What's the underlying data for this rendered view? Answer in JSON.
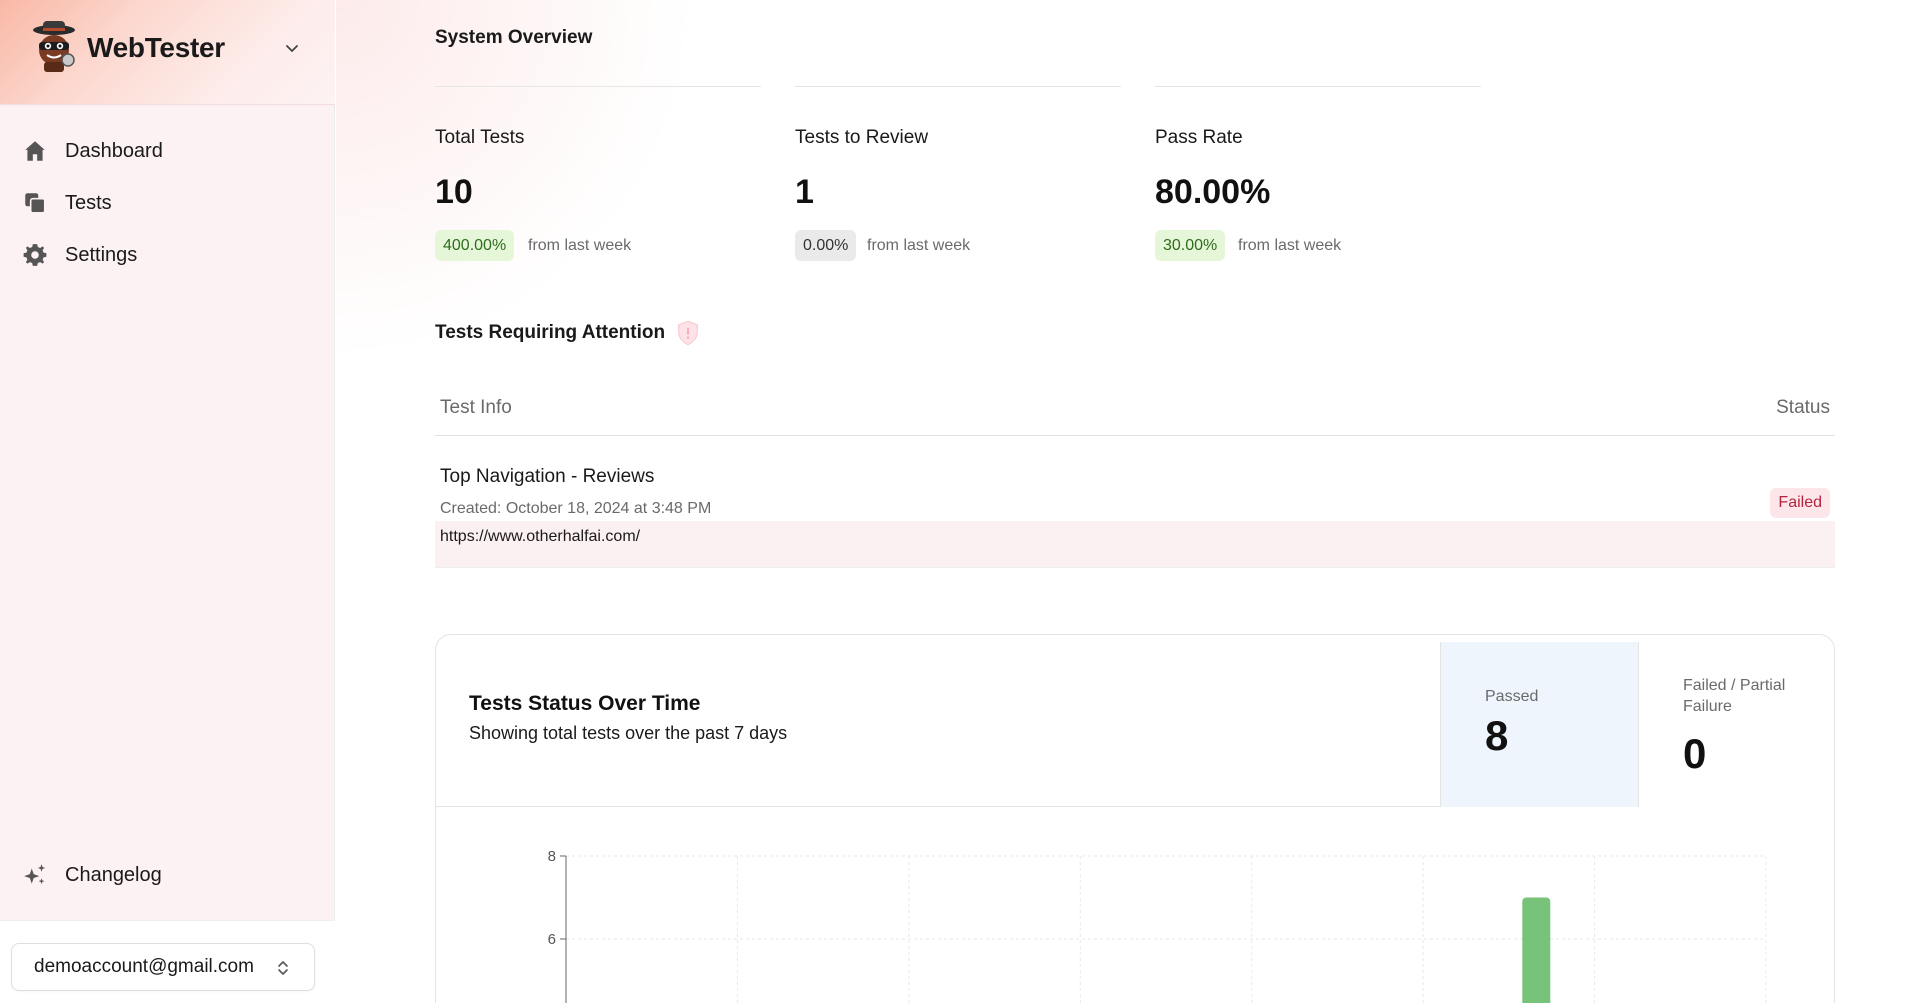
{
  "app": {
    "name": "WebTester",
    "logo_icon": "bandit-mascot-icon",
    "switcher_icon": "chevron-down-icon"
  },
  "sidebar": {
    "items": [
      {
        "label": "Dashboard",
        "icon": "home-icon"
      },
      {
        "label": "Tests",
        "icon": "copy-icon"
      },
      {
        "label": "Settings",
        "icon": "gear-icon"
      }
    ],
    "changelog": {
      "label": "Changelog",
      "icon": "sparkles-icon"
    },
    "account": {
      "email": "demoaccount@gmail.com",
      "icon": "chevron-up-down-icon"
    }
  },
  "overview": {
    "title": "System Overview",
    "stats": [
      {
        "label": "Total Tests",
        "value": "10",
        "change": "400.00%",
        "note": "from last week"
      },
      {
        "label": "Tests to Review",
        "value": "1",
        "change": "0.00%",
        "note": "from last week"
      },
      {
        "label": "Pass Rate",
        "value": "80.00%",
        "change": "30.00%",
        "note": "from last week"
      }
    ]
  },
  "attention": {
    "title": "Tests Requiring Attention",
    "icon": "alert-shield-icon",
    "columns": {
      "info": "Test Info",
      "status": "Status"
    },
    "rows": [
      {
        "name": "Top Navigation - Reviews",
        "created": "Created: October 18, 2024 at 3:48 PM",
        "url": "https://www.otherhalfai.com/",
        "status": "Failed"
      }
    ]
  },
  "status_card": {
    "title": "Tests Status Over Time",
    "subtitle": "Showing total tests over the past 7 days",
    "passed": {
      "label": "Passed",
      "value": "8"
    },
    "failed": {
      "label": "Failed / Partial Failure",
      "value": "0"
    }
  },
  "colors": {
    "accent_green": "#77c37a",
    "failed_red": "#b3243f",
    "passed_panel": "#eef5fd"
  },
  "chart_data": {
    "type": "bar",
    "categories": [
      "",
      "",
      "",
      "",
      "",
      "",
      ""
    ],
    "series": [
      {
        "values": [
          0,
          0,
          0,
          0,
          0,
          7,
          0
        ]
      }
    ],
    "yticks": [
      6,
      8
    ],
    "ylim": [
      0,
      8
    ],
    "grid": true
  }
}
